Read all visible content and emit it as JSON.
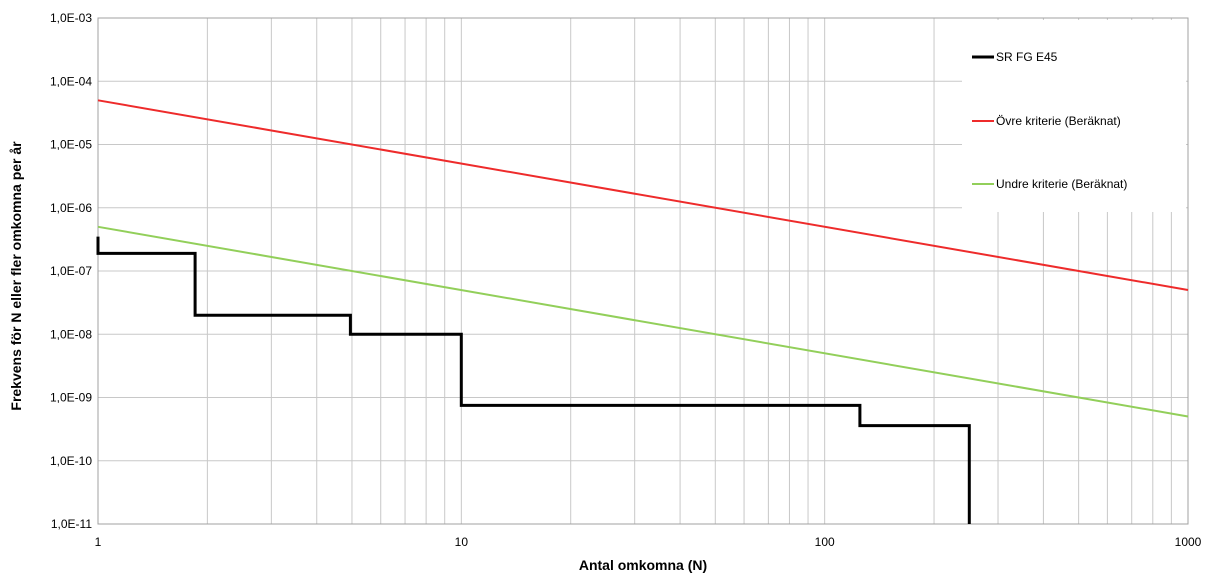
{
  "chart_data": {
    "type": "line",
    "xlabel": "Antal omkomna (N)",
    "ylabel": "Frekvens för N eller fler omkomna per år",
    "xscale": "log",
    "yscale": "log",
    "xlim": [
      1,
      1000
    ],
    "ylim": [
      1e-11,
      0.001
    ],
    "grid": true,
    "legend_position": "top-right",
    "x_tick_labels": [
      {
        "value": 1,
        "label": "1"
      },
      {
        "value": 10,
        "label": "10"
      },
      {
        "value": 100,
        "label": "100"
      },
      {
        "value": 1000,
        "label": "1000"
      }
    ],
    "y_tick_labels": [
      {
        "value": 0.001,
        "label": "1,0E-03"
      },
      {
        "value": 0.0001,
        "label": "1,0E-04"
      },
      {
        "value": 1e-05,
        "label": "1,0E-05"
      },
      {
        "value": 1e-06,
        "label": "1,0E-06"
      },
      {
        "value": 1e-07,
        "label": "1,0E-07"
      },
      {
        "value": 1e-08,
        "label": "1,0E-08"
      },
      {
        "value": 1e-09,
        "label": "1,0E-09"
      },
      {
        "value": 1e-10,
        "label": "1,0E-10"
      },
      {
        "value": 1e-11,
        "label": "1,0E-11"
      }
    ],
    "series": [
      {
        "name": "SR FG E45",
        "color": "#000000",
        "style": "step",
        "x": [
          1,
          1,
          1.85,
          1.85,
          4.95,
          4.95,
          10,
          10,
          125,
          125,
          250,
          250
        ],
        "y": [
          3.5e-07,
          1.9e-07,
          1.9e-07,
          2e-08,
          2e-08,
          1e-08,
          1e-08,
          7.5e-10,
          7.5e-10,
          3.6e-10,
          3.6e-10,
          1e-11
        ]
      },
      {
        "name": "Övre kriterie (Beräknat)",
        "color": "#ee2b2b",
        "style": "line",
        "x": [
          1,
          1000
        ],
        "y": [
          5e-05,
          5e-08
        ]
      },
      {
        "name": "Undre kriterie (Beräknat)",
        "color": "#92cf5a",
        "style": "line",
        "x": [
          1,
          1000
        ],
        "y": [
          5e-07,
          5e-10
        ]
      }
    ]
  }
}
